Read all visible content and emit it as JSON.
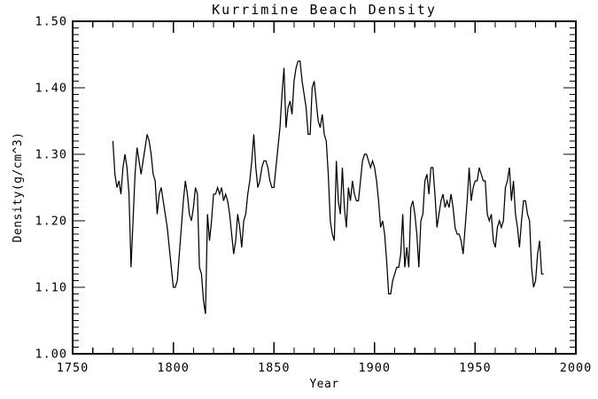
{
  "window": {
    "background": "#ffffff",
    "foreground": "#000000"
  },
  "chart_data": {
    "type": "line",
    "title": "Kurrimine Beach Density",
    "xlabel": "Year",
    "ylabel": "Density(g/cm^3)",
    "xlim": [
      1750,
      2000
    ],
    "ylim": [
      1.0,
      1.5
    ],
    "x_major_ticks": [
      1750,
      1800,
      1850,
      1900,
      1950,
      2000
    ],
    "x_tick_labels": [
      "1750",
      "1800",
      "1850",
      "1900",
      "1950",
      "2000"
    ],
    "x_minor_step": 10,
    "y_major_ticks": [
      1.0,
      1.1,
      1.2,
      1.3,
      1.4,
      1.5
    ],
    "y_tick_labels": [
      "1.00",
      "1.10",
      "1.20",
      "1.30",
      "1.40",
      "1.50"
    ],
    "y_minor_step": 0.01,
    "grid": false,
    "legend_position": "none",
    "line_color": "#000000",
    "background_color": "#ffffff",
    "series_name": "density",
    "x_start": 1770,
    "x_step": 1,
    "x_end": 1984,
    "values": [
      1.32,
      1.27,
      1.25,
      1.26,
      1.24,
      1.28,
      1.3,
      1.28,
      1.24,
      1.13,
      1.2,
      1.27,
      1.31,
      1.29,
      1.27,
      1.29,
      1.31,
      1.33,
      1.32,
      1.3,
      1.27,
      1.26,
      1.21,
      1.24,
      1.25,
      1.23,
      1.21,
      1.19,
      1.16,
      1.13,
      1.1,
      1.1,
      1.11,
      1.15,
      1.19,
      1.23,
      1.26,
      1.24,
      1.21,
      1.2,
      1.22,
      1.25,
      1.24,
      1.13,
      1.12,
      1.08,
      1.06,
      1.21,
      1.17,
      1.2,
      1.24,
      1.24,
      1.25,
      1.24,
      1.25,
      1.23,
      1.24,
      1.23,
      1.21,
      1.18,
      1.15,
      1.17,
      1.21,
      1.19,
      1.16,
      1.2,
      1.21,
      1.24,
      1.26,
      1.29,
      1.33,
      1.28,
      1.25,
      1.26,
      1.28,
      1.29,
      1.29,
      1.28,
      1.26,
      1.25,
      1.25,
      1.28,
      1.31,
      1.34,
      1.39,
      1.43,
      1.34,
      1.37,
      1.38,
      1.36,
      1.41,
      1.43,
      1.44,
      1.44,
      1.41,
      1.39,
      1.37,
      1.33,
      1.33,
      1.4,
      1.41,
      1.38,
      1.35,
      1.34,
      1.36,
      1.33,
      1.32,
      1.27,
      1.2,
      1.18,
      1.17,
      1.29,
      1.23,
      1.21,
      1.28,
      1.22,
      1.19,
      1.25,
      1.23,
      1.26,
      1.24,
      1.23,
      1.23,
      1.26,
      1.29,
      1.3,
      1.3,
      1.29,
      1.28,
      1.29,
      1.28,
      1.26,
      1.23,
      1.19,
      1.2,
      1.18,
      1.14,
      1.09,
      1.09,
      1.11,
      1.12,
      1.13,
      1.13,
      1.15,
      1.21,
      1.13,
      1.16,
      1.13,
      1.22,
      1.23,
      1.21,
      1.18,
      1.13,
      1.2,
      1.21,
      1.26,
      1.27,
      1.24,
      1.28,
      1.28,
      1.24,
      1.19,
      1.21,
      1.23,
      1.24,
      1.22,
      1.23,
      1.22,
      1.24,
      1.22,
      1.19,
      1.18,
      1.18,
      1.17,
      1.15,
      1.19,
      1.23,
      1.28,
      1.23,
      1.25,
      1.26,
      1.26,
      1.28,
      1.27,
      1.26,
      1.26,
      1.21,
      1.2,
      1.21,
      1.17,
      1.16,
      1.19,
      1.2,
      1.19,
      1.2,
      1.25,
      1.26,
      1.28,
      1.23,
      1.26,
      1.21,
      1.19,
      1.16,
      1.2,
      1.23,
      1.23,
      1.21,
      1.2,
      1.13,
      1.1,
      1.11,
      1.15,
      1.17,
      1.12,
      1.12
    ]
  }
}
